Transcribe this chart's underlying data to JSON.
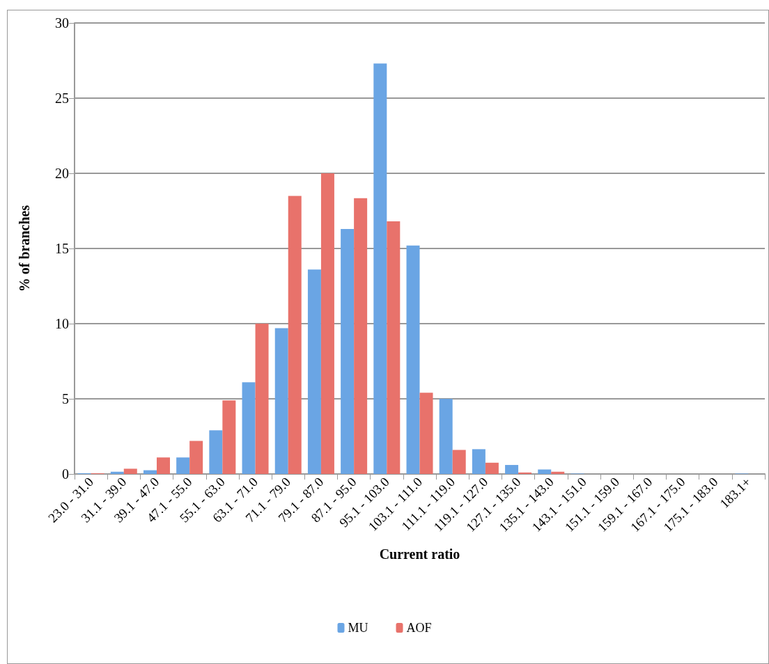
{
  "chart_data": {
    "type": "bar",
    "xlabel": "Current ratio",
    "ylabel": "% of branches",
    "categories": [
      "23.0 - 31.0",
      "31.1 - 39.0",
      "39.1 - 47.0",
      "47.1 - 55.0",
      "55.1 - 63.0",
      "63.1 - 71.0",
      "71.1 - 79.0",
      "79.1 - 87.0",
      "87.1 - 95.0",
      "95.1 - 103.0",
      "103.1 - 111.0",
      "111.1 - 119.0",
      "119.1 - 127.0",
      "127.1 - 135.0",
      "135.1 - 143.0",
      "143.1 - 151.0",
      "151.1 - 159.0",
      "159.1 - 167.0",
      "167.1 - 175.0",
      "175.1 - 183.0",
      "183.1+"
    ],
    "series": [
      {
        "name": "MU",
        "color": "#6aa5e4",
        "values": [
          0.05,
          0.15,
          0.25,
          1.1,
          2.9,
          6.1,
          9.7,
          13.6,
          16.3,
          27.3,
          15.2,
          5.0,
          1.65,
          0.6,
          0.3,
          0.03,
          0,
          0,
          0,
          0,
          0.03
        ]
      },
      {
        "name": "AOF",
        "color": "#e8726b",
        "values": [
          0.05,
          0.35,
          1.1,
          2.2,
          4.9,
          10.0,
          18.5,
          20.0,
          18.35,
          16.8,
          5.4,
          1.6,
          0.75,
          0.1,
          0.15,
          0,
          0,
          0,
          0,
          0,
          0
        ]
      }
    ],
    "ylim": [
      0,
      30
    ],
    "yticks": [
      0,
      5,
      10,
      15,
      20,
      25,
      30
    ],
    "grid": "y",
    "legend": "bottom"
  }
}
